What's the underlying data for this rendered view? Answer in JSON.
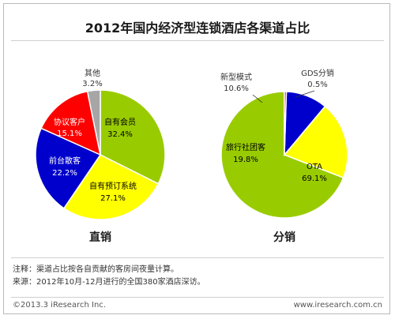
{
  "title": "2012年国内经济型连锁酒店各渠道占比",
  "notes": {
    "note": "注释：渠道占比按各自贡献的客房间夜量计算。",
    "source": "来源：2012年10月-12月进行的全国380家酒店深访。"
  },
  "footer": {
    "copyright": "©2013.3 iResearch Inc.",
    "website": "www.iresearch.com.cn"
  },
  "chart_data": [
    {
      "type": "pie",
      "title": "直销",
      "slices": [
        {
          "label": "自有会员",
          "value": 32.4,
          "value_text": "32.4%",
          "color": "#99cc00"
        },
        {
          "label": "自有预订系统",
          "value": 27.1,
          "value_text": "27.1%",
          "color": "#ffff00"
        },
        {
          "label": "前台散客",
          "value": 22.2,
          "value_text": "22.2%",
          "color": "#0000cc"
        },
        {
          "label": "协议客户",
          "value": 15.1,
          "value_text": "15.1%",
          "color": "#ff0000"
        },
        {
          "label": "其他",
          "value": 3.2,
          "value_text": "3.2%",
          "color": "#a6a6a6"
        }
      ]
    },
    {
      "type": "pie",
      "title": "分销",
      "slices": [
        {
          "label": "OTA",
          "value": 69.1,
          "value_text": "69.1%",
          "color": "#99cc00"
        },
        {
          "label": "旅行社团客",
          "value": 19.8,
          "value_text": "19.8%",
          "color": "#ffff00"
        },
        {
          "label": "新型模式",
          "value": 10.6,
          "value_text": "10.6%",
          "color": "#0000cc"
        },
        {
          "label": "GDS分销",
          "value": 0.5,
          "value_text": "0.5%",
          "color": "#ff0000"
        }
      ]
    }
  ]
}
